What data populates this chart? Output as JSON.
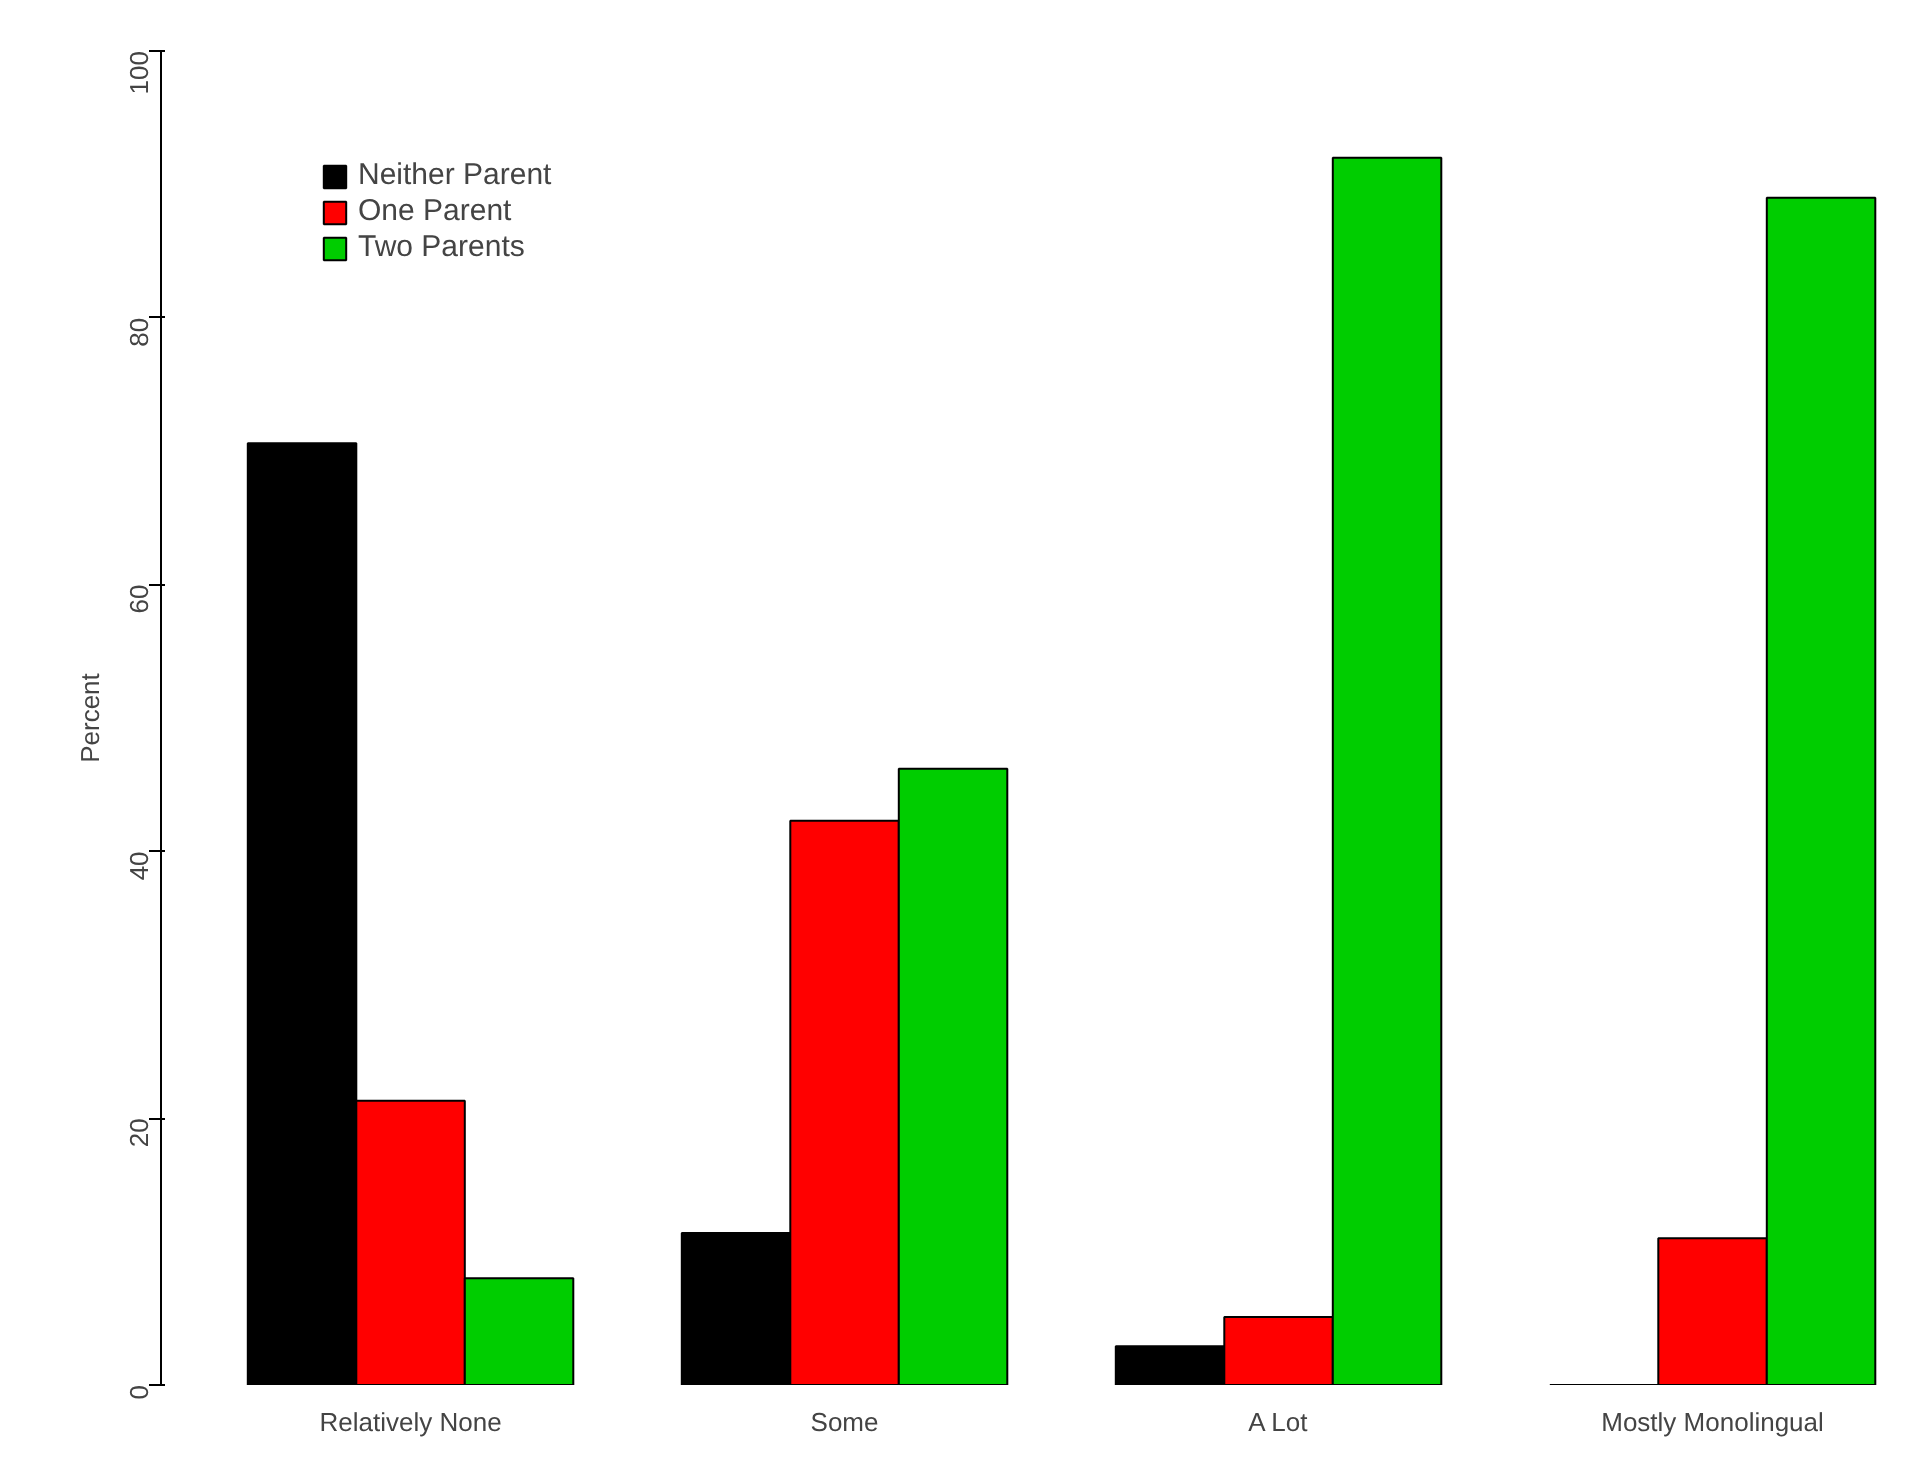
{
  "chart_data": {
    "type": "bar",
    "ylabel": "Percent",
    "categories": [
      "Relatively None",
      "Some",
      "A Lot",
      "Mostly Monolingual"
    ],
    "series": [
      {
        "name": "Neither Parent",
        "color": "#000000",
        "values": [
          70.6,
          11.4,
          2.9,
          0
        ]
      },
      {
        "name": "One Parent",
        "color": "#ff0000",
        "values": [
          21.3,
          42.3,
          5.1,
          11.0
        ]
      },
      {
        "name": "Two Parents",
        "color": "#00cd00",
        "values": [
          8.0,
          46.2,
          92.0,
          89.0
        ]
      }
    ],
    "ylim": [
      0,
      100
    ],
    "yticks": [
      0,
      20,
      40,
      60,
      80,
      100
    ],
    "grid": false,
    "legend": "top left"
  }
}
